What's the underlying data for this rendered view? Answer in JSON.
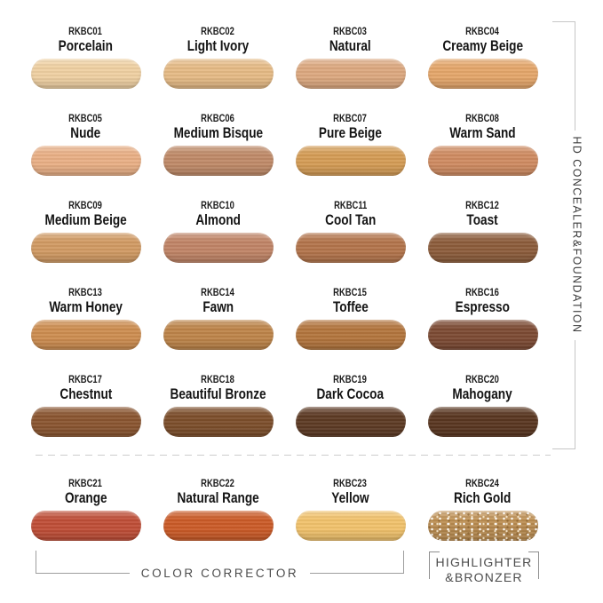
{
  "bracket": {
    "label": "HD CONCEALER&FOUNDATION"
  },
  "grid": {
    "items": [
      {
        "code": "RKBC01",
        "name": "Porcelain",
        "color": "#efd0a2"
      },
      {
        "code": "RKBC02",
        "name": "Light Ivory",
        "color": "#e5ba85"
      },
      {
        "code": "RKBC03",
        "name": "Natural",
        "color": "#dca87f"
      },
      {
        "code": "RKBC04",
        "name": "Creamy Beige",
        "color": "#e4a66a"
      },
      {
        "code": "RKBC05",
        "name": "Nude",
        "color": "#e9af85"
      },
      {
        "code": "RKBC06",
        "name": "Medium Bisque",
        "color": "#bf8a68"
      },
      {
        "code": "RKBC07",
        "name": "Pure Beige",
        "color": "#d49c55"
      },
      {
        "code": "RKBC08",
        "name": "Warm Sand",
        "color": "#cf8b61"
      },
      {
        "code": "RKBC09",
        "name": "Medium Beige",
        "color": "#d19a63"
      },
      {
        "code": "RKBC10",
        "name": "Almond",
        "color": "#c08466"
      },
      {
        "code": "RKBC11",
        "name": "Cool Tan",
        "color": "#b3744b"
      },
      {
        "code": "RKBC12",
        "name": "Toast",
        "color": "#8c5c3b"
      },
      {
        "code": "RKBC13",
        "name": "Warm Honey",
        "color": "#cd8d50"
      },
      {
        "code": "RKBC14",
        "name": "Fawn",
        "color": "#bd8449"
      },
      {
        "code": "RKBC15",
        "name": "Toffee",
        "color": "#b3753d"
      },
      {
        "code": "RKBC16",
        "name": "Espresso",
        "color": "#7c4a33"
      },
      {
        "code": "RKBC17",
        "name": "Chestnut",
        "color": "#8a5530"
      },
      {
        "code": "RKBC18",
        "name": "Beautiful Bronze",
        "color": "#7c4e2b"
      },
      {
        "code": "RKBC19",
        "name": "Dark Cocoa",
        "color": "#5d3a24"
      },
      {
        "code": "RKBC20",
        "name": "Mahogany",
        "color": "#593620"
      },
      {
        "code": "RKBC21",
        "name": "Orange",
        "color": "#bf4e37"
      },
      {
        "code": "RKBC22",
        "name": "Natural Range",
        "color": "#cb5b28"
      },
      {
        "code": "RKBC23",
        "name": "Yellow",
        "color": "#f1c26c"
      },
      {
        "code": "RKBC24",
        "name": "Rich Gold",
        "color": "#bf9053",
        "finish": "shimmer"
      }
    ]
  },
  "footer": {
    "corrector_label": "COLOR CORRECTOR",
    "highlighter_line1": "HIGHLIGHTER",
    "highlighter_line2": "&BRONZER"
  },
  "styles": {
    "label_ink": "#1c1c1c",
    "bracket_gray": "#c6c6c6",
    "footer_ink": "#4c4c4c"
  }
}
